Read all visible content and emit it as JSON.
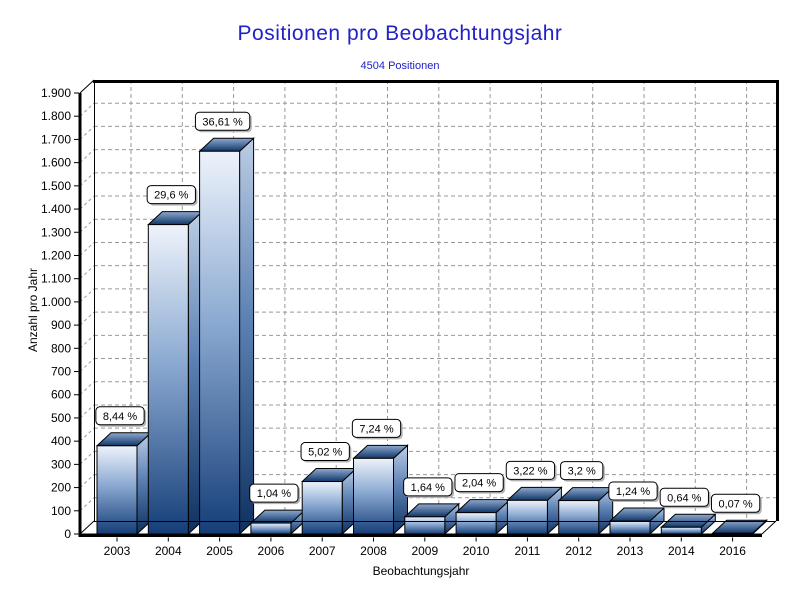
{
  "chart_data": {
    "type": "bar",
    "style": "3d-column",
    "title": "Positionen pro Beobachtungsjahr",
    "subtitle": "4504 Positionen",
    "xlabel": "Beobachtungsjahr",
    "ylabel": "Anzahl pro Jahr",
    "categories": [
      "2003",
      "2004",
      "2005",
      "2006",
      "2007",
      "2008",
      "2009",
      "2010",
      "2011",
      "2012",
      "2013",
      "2014",
      "2016"
    ],
    "values": [
      380,
      1333,
      1649,
      47,
      226,
      326,
      74,
      92,
      145,
      144,
      56,
      29,
      3
    ],
    "bar_labels": [
      "8,44 %",
      "29,6 %",
      "36,61 %",
      "1,04 %",
      "5,02 %",
      "7,24 %",
      "1,64 %",
      "2,04 %",
      "3,22 %",
      "3,2 %",
      "1,24 %",
      "0,64 %",
      "0,07 %"
    ],
    "total_positions": 4504,
    "ylim": [
      0,
      1900
    ],
    "y_tick_step": 100,
    "y_tick_labels": [
      "0",
      "100",
      "200",
      "300",
      "400",
      "500",
      "600",
      "700",
      "800",
      "900",
      "1.000",
      "1.100",
      "1.200",
      "1.300",
      "1.400",
      "1.500",
      "1.600",
      "1.700",
      "1.800",
      "1.900"
    ],
    "grid": "dashed",
    "legend": "none",
    "colors": {
      "title": "#2121c8",
      "subtitle": "#2121c8",
      "grid": "#999999",
      "axis": "#000000",
      "tick_text": "#000000",
      "label_box_bg": "#ffffff",
      "label_box_border": "#000000",
      "label_box_shadow": "#b4b4b4",
      "bar_front_gradient": [
        "#eef3fb",
        "#8aa9d1",
        "#153e78"
      ],
      "bar_side_gradient": [
        "#bccde5",
        "#5d82b4",
        "#0e3160"
      ],
      "bar_top_gradient_back_to_front": [
        "#8fa9cf",
        "#0f3768"
      ]
    }
  }
}
